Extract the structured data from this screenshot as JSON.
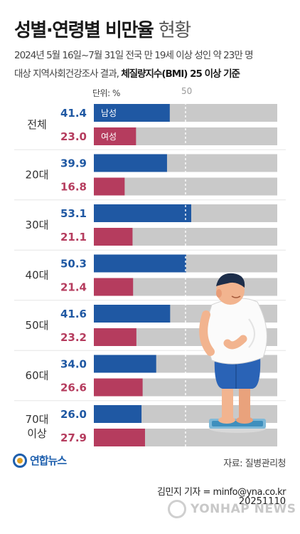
{
  "title_bold": "성별·연령별 비만율",
  "title_light": "현황",
  "subtitle_line1": "2024년 5월 16일~7월 31일 전국 만 19세 이상 성인 약 23만 명",
  "subtitle_line2_a": "대상 지역사회건강조사 결과,",
  "subtitle_line2_b": "체질량지수(BMI) 25 이상 기준",
  "unit_label": "단위: %",
  "reference_label": "50",
  "source": "자료: 질병관리청",
  "logo_text": "연합뉴스",
  "credit": "김민지 기자 = minfo@yna.co.kr",
  "date": "20251110",
  "watermark": "YONHAP NEWS",
  "colors": {
    "male": "#1f58a3",
    "female": "#b53c5e",
    "track": "#c9c9c9",
    "male_text": "#1f58a3",
    "female_text": "#b53c5e"
  },
  "chart_data": {
    "type": "bar",
    "orientation": "horizontal",
    "categories": [
      "전체",
      "20대",
      "30대",
      "40대",
      "50대",
      "60대",
      "70대 이상"
    ],
    "series": [
      {
        "name": "남성",
        "values": [
          41.4,
          39.9,
          53.1,
          50.3,
          41.6,
          34.0,
          26.0
        ]
      },
      {
        "name": "여성",
        "values": [
          23.0,
          16.8,
          21.1,
          21.4,
          23.2,
          26.6,
          27.9
        ]
      }
    ],
    "xlim": [
      0,
      100
    ],
    "reference_line": 50,
    "unit": "%",
    "legend": "inside first bars"
  }
}
